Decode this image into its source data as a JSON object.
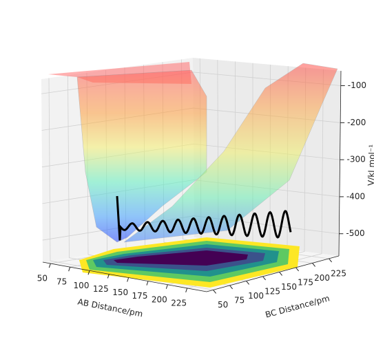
{
  "chart_data": {
    "type": "surface3d",
    "xlabel": "AB Distance/pm",
    "ylabel": "BC Distance/pm",
    "zlabel": "V/kJ mol⁻¹",
    "xlim": [
      40,
      250
    ],
    "xticks": [
      50,
      75,
      100,
      125,
      150,
      175,
      200,
      225
    ],
    "ylim": [
      40,
      240
    ],
    "yticks": [
      50,
      75,
      100,
      125,
      150,
      175,
      200,
      225
    ],
    "zlim": [
      -560,
      -60
    ],
    "zticks": [
      -100,
      -200,
      -300,
      -400,
      -500
    ],
    "grid": true
  }
}
